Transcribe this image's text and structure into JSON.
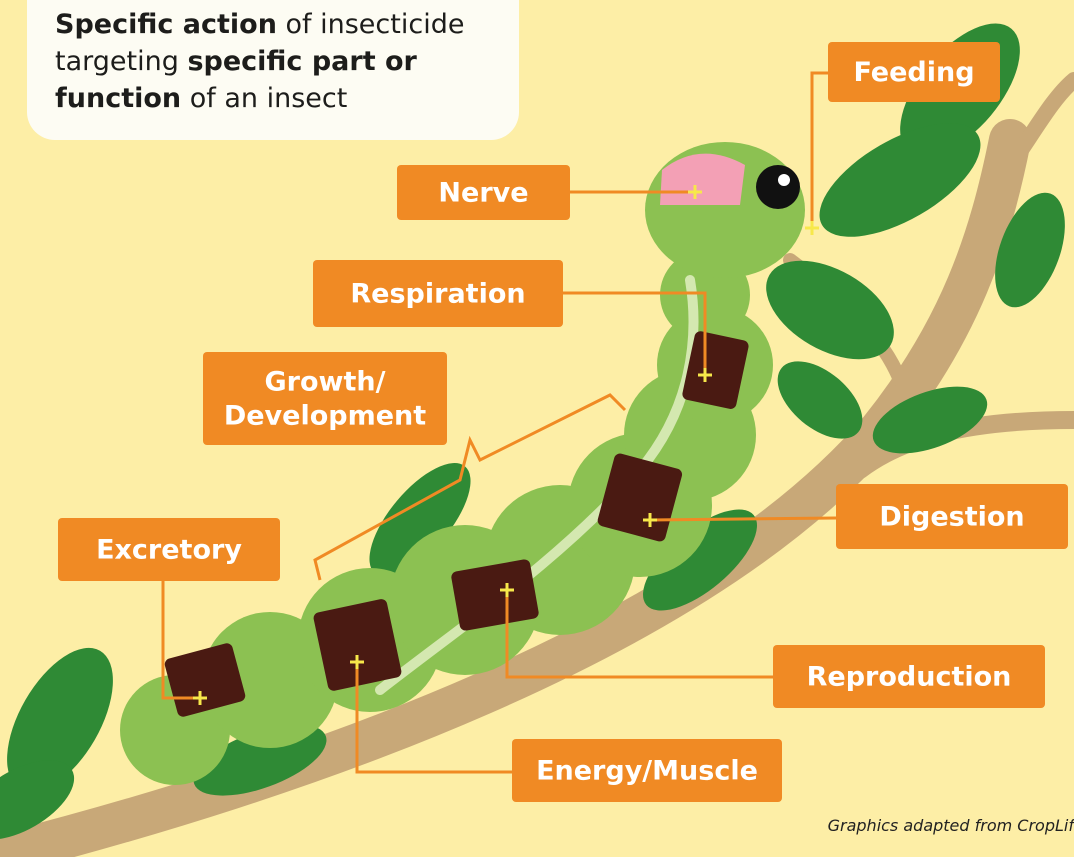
{
  "title": {
    "segments": [
      {
        "text": "Specific action",
        "bold": true
      },
      {
        "text": "of insecticide targeting",
        "bold": false
      },
      {
        "text": "specific part or function",
        "bold": true
      },
      {
        "text": "of an insect",
        "bold": false
      }
    ]
  },
  "labels": [
    {
      "lines": [
        "Feeding"
      ]
    },
    {
      "lines": [
        "Nerve"
      ]
    },
    {
      "lines": [
        "Respiration"
      ]
    },
    {
      "lines": [
        "Growth/",
        "Development"
      ]
    },
    {
      "lines": [
        "Excretory"
      ]
    },
    {
      "lines": [
        "Digestion"
      ]
    },
    {
      "lines": [
        "Reproduction"
      ]
    },
    {
      "lines": [
        "Energy/Muscle"
      ]
    }
  ],
  "credit": "Graphics adapted from CropLif"
}
